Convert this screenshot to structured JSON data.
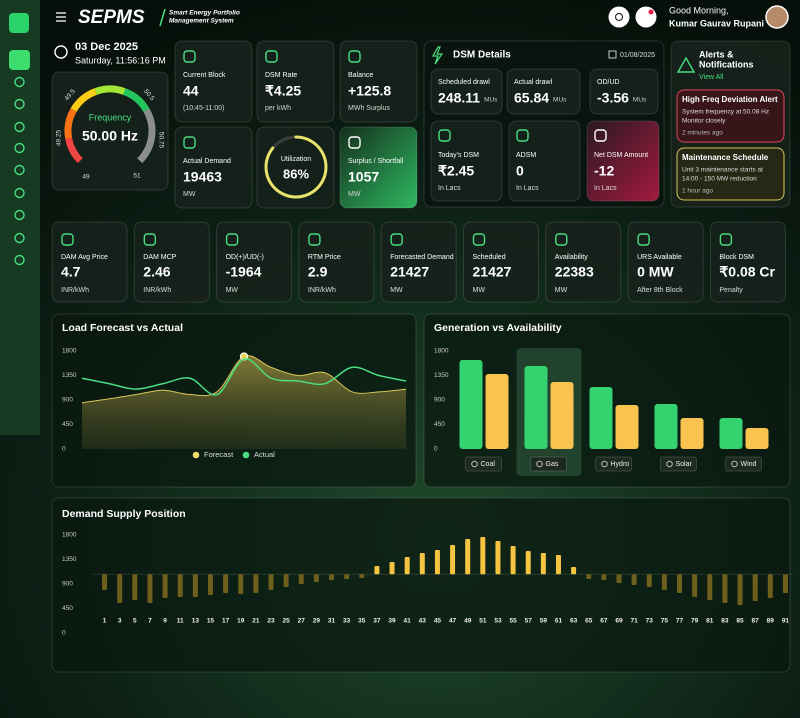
{
  "header": {
    "logo": "SEPMS",
    "tagline": [
      "Smart Energy Portfolio",
      "Management System"
    ],
    "greeting": "Good Morning,",
    "user": "Kumar Gaurav Rupani"
  },
  "clock": {
    "date": "03 Dec 2025",
    "time": "Saturday, 11:56:16 PM"
  },
  "gauge": {
    "label": "Frequency",
    "value": "50.00 Hz",
    "ticks": [
      "49.5",
      "49.25",
      "49",
      "50.5",
      "50.75",
      "51"
    ]
  },
  "kpis": [
    {
      "label": "Current Block",
      "value": "44",
      "unit": "(10:45-11:00)"
    },
    {
      "label": "DSM Rate",
      "value": "₹4.25",
      "unit": "per kWh"
    },
    {
      "label": "Balance",
      "value": "+125.8",
      "unit": "MWh Surplus"
    },
    {
      "label": "Actual Demand",
      "value": "19463",
      "unit": "MW"
    },
    {
      "label": "Surplus / Shortfall",
      "value": "1057",
      "unit": "MW"
    }
  ],
  "utilization": {
    "label": "Utilization",
    "value": 86,
    "value_label": "86%"
  },
  "dsm": {
    "title": "DSM Details",
    "date": "01/08/2025",
    "cards": [
      {
        "label": "Scheduled drawl",
        "value": "248.11",
        "unit": "MUs"
      },
      {
        "label": "Actual drawl",
        "value": "65.84",
        "unit": "MUs"
      },
      {
        "label": "OD/UD",
        "value": "-3.56",
        "unit": "MUs"
      },
      {
        "label": "Today's DSM",
        "value": "₹2.45",
        "unit": "In Lacs"
      },
      {
        "label": "ADSM",
        "value": "0",
        "unit": "In Lacs"
      },
      {
        "label": "Net DSM Amount",
        "value": "-12",
        "unit": "In Lacs"
      }
    ]
  },
  "alerts": {
    "title": [
      "Alerts &",
      "Notifications"
    ],
    "view_all": "View All",
    "items": [
      {
        "title": "High Freq Deviation Alert",
        "text": [
          "System frequency at 50.08 Hz",
          "Monitor closely"
        ],
        "time": "2 minutes ago"
      },
      {
        "title": "Maintenance Schedule",
        "text": [
          "Unit 3 maintenance starts at",
          "14:00 - 150 MW reduction"
        ],
        "time": "1 hour ago"
      }
    ]
  },
  "metrics": [
    {
      "label": "DAM Avg Price",
      "value": "4.7",
      "unit": "INR/kWh"
    },
    {
      "label": "DAM MCP",
      "value": "2.46",
      "unit": "INR/kWh"
    },
    {
      "label": "OD(+)/UD(-)",
      "value": "-1964",
      "unit": "MW"
    },
    {
      "label": "RTM Price",
      "value": "2.9",
      "unit": "INR/kWh"
    },
    {
      "label": "Forecasted Demand",
      "value": "21427",
      "unit": "MW"
    },
    {
      "label": "Scheduled",
      "value": "21427",
      "unit": "MW"
    },
    {
      "label": "Availability",
      "value": "22383",
      "unit": "MW"
    },
    {
      "label": "URS Available",
      "value": "0 MW",
      "unit": "After 8th Block"
    },
    {
      "label": "Block DSM",
      "value": "₹0.08 Cr",
      "unit": "Penalty"
    }
  ],
  "chart_data": [
    {
      "type": "line",
      "title": "Load Forecast vs Actual",
      "categories": [
        null,
        null,
        null,
        null,
        null,
        null,
        null,
        null,
        null,
        null,
        null,
        null,
        null
      ],
      "ylim": [
        0,
        1800
      ],
      "yticks": [
        0,
        450,
        900,
        1350,
        1800
      ],
      "legend": "bottom",
      "series": [
        {
          "name": "Forecast",
          "color": "#d9c65a",
          "fill": true,
          "highlight": 6,
          "values": [
            850,
            920,
            1000,
            1080,
            1000,
            1050,
            1700,
            1500,
            1350,
            1400,
            1050,
            1050,
            1100
          ]
        },
        {
          "name": "Actual",
          "color": "#4ade80",
          "values": [
            1300,
            1200,
            1100,
            1200,
            1300,
            1000,
            1650,
            1300,
            1250,
            1200,
            1500,
            1350,
            1250
          ]
        }
      ]
    },
    {
      "type": "bar",
      "title": "Generation vs Availability",
      "categories": [
        "Coal",
        "Gas",
        "Hydro",
        "Solar",
        "Wind"
      ],
      "ylim": [
        0,
        1800
      ],
      "yticks": [
        0,
        450,
        900,
        1350,
        1800
      ],
      "highlight": 1,
      "series": [
        {
          "color": "#34d36f",
          "values": [
            1635,
            1525,
            1139,
            827,
            570
          ]
        },
        {
          "color": "#f8c44f",
          "values": [
            1378,
            1230,
            808,
            570,
            386
          ]
        }
      ]
    },
    {
      "type": "bar",
      "title": "Demand Supply Position",
      "categories": [
        "1",
        "3",
        "5",
        "7",
        "9",
        "11",
        "13",
        "15",
        "17",
        "19",
        "21",
        "23",
        "25",
        "27",
        "29",
        "31",
        "33",
        "35",
        "37",
        "39",
        "41",
        "43",
        "45",
        "47",
        "49",
        "51",
        "53",
        "55",
        "57",
        "59",
        "61",
        "63",
        "65",
        "67",
        "69",
        "71",
        "73",
        "75",
        "77",
        "79",
        "81",
        "83",
        "85",
        "87",
        "89",
        "91"
      ],
      "values": [
        790,
        551,
        606,
        551,
        643,
        661,
        661,
        698,
        735,
        716,
        735,
        790,
        845,
        900,
        937,
        973,
        992,
        1010,
        1231,
        1304,
        1396,
        1469,
        1524,
        1616,
        1727,
        1763,
        1690,
        1598,
        1506,
        1469,
        1433,
        1212,
        992,
        973,
        918,
        882,
        845,
        790,
        735,
        661,
        606,
        551,
        514,
        588,
        643,
        735
      ],
      "ylim": [
        0,
        1800
      ],
      "yticks": [
        0,
        450,
        900,
        1350,
        1800
      ],
      "baseline": 1080,
      "color": "#f5c542",
      "below_color": "#6e5f1d"
    }
  ]
}
